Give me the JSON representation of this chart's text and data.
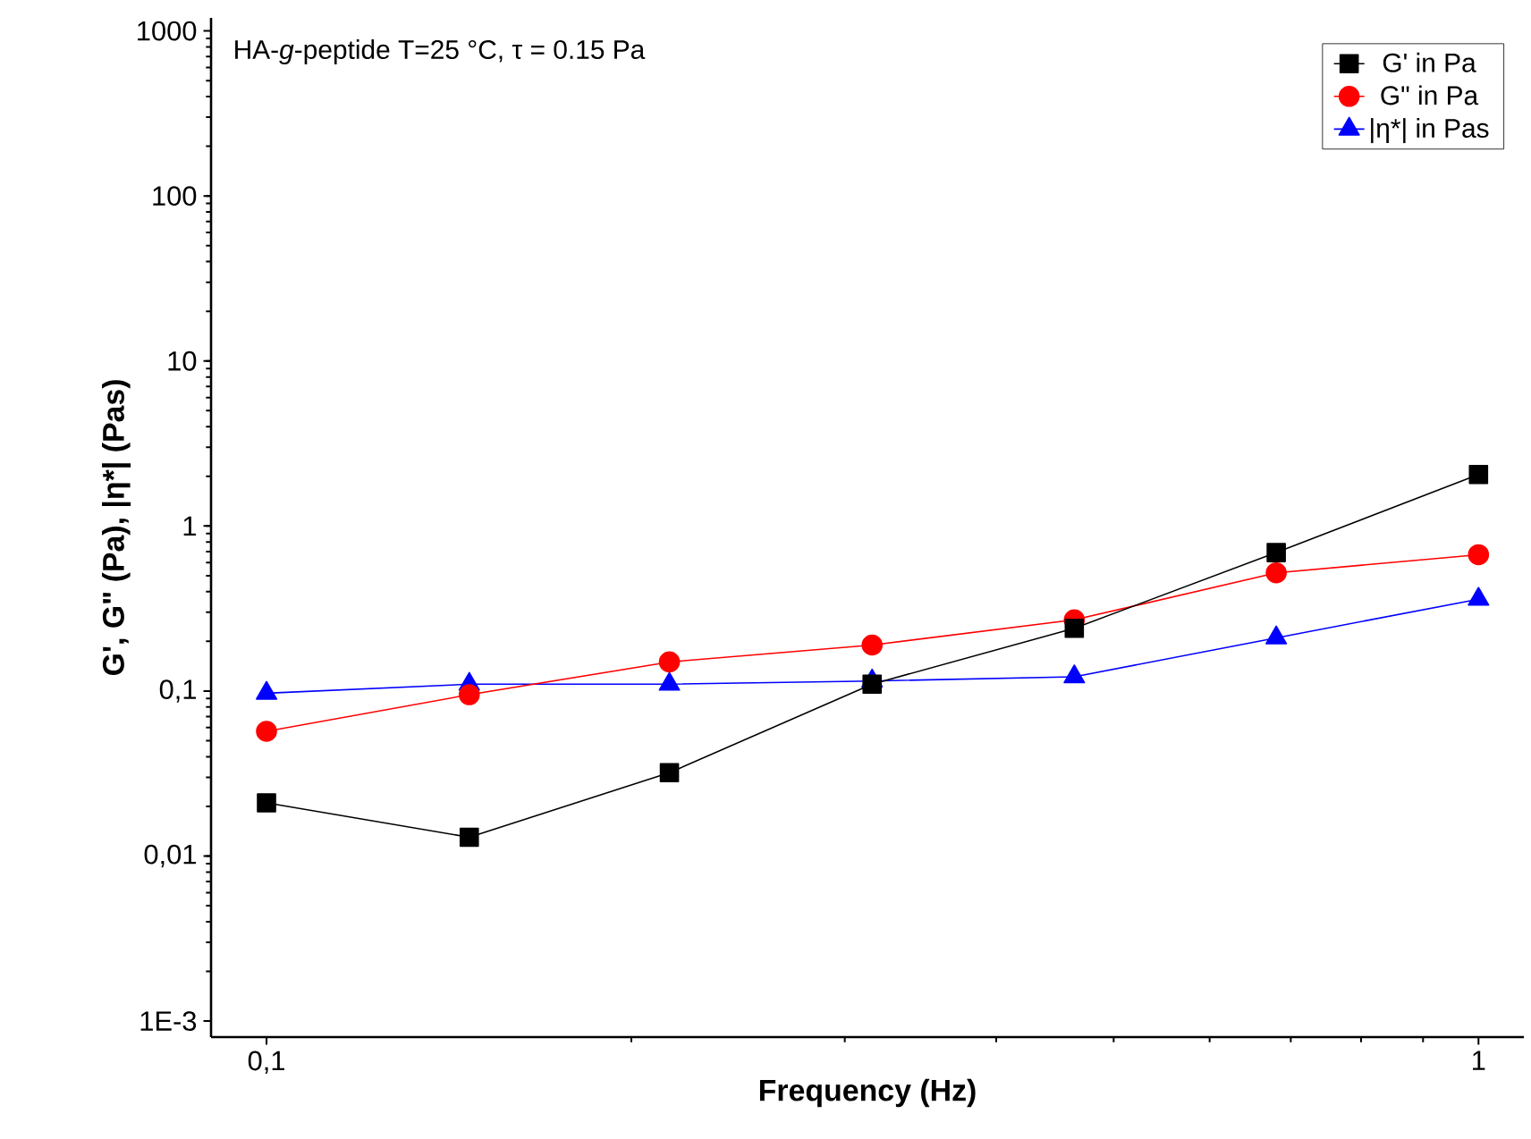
{
  "chart_data": {
    "type": "line",
    "log": "xy",
    "grid": false,
    "legend": "top right",
    "annotations": [
      "HA-*g*-peptide T=25 °C, τ = 0.15 Pa"
    ],
    "xlabel": "Frequency (Hz)",
    "ylabel": "G', G\" (Pa), |η*| (Pas)",
    "x": [
      0.1,
      0.147,
      0.215,
      0.316,
      0.464,
      0.681,
      1
    ],
    "xlim": [
      0.09,
      1.09
    ],
    "ylim": [
      0.0008,
      1200
    ],
    "xticks": [
      {
        "value": 0.1,
        "label": "0,1"
      },
      1
    ],
    "yticks": [
      {
        "value": 0.001,
        "label": "1E-3"
      },
      {
        "value": 0.01,
        "label": "0,01"
      },
      {
        "value": 0.1,
        "label": "0,1"
      },
      1,
      10,
      100,
      1000
    ],
    "series": [
      {
        "name": "G' in Pa",
        "color": "#000000",
        "marker": "square",
        "values": [
          0.021,
          0.013,
          0.032,
          0.11,
          0.24,
          0.69,
          2.05
        ]
      },
      {
        "name": "G\" in Pa",
        "color": "#ff0000",
        "marker": "circle",
        "values": [
          0.057,
          0.095,
          0.15,
          0.19,
          0.27,
          0.52,
          0.67
        ]
      },
      {
        "name": "|η*| in Pas",
        "color": "#0000ff",
        "marker": "triangle",
        "values": [
          0.097,
          0.11,
          0.11,
          0.115,
          0.122,
          0.21,
          0.36
        ]
      }
    ]
  }
}
